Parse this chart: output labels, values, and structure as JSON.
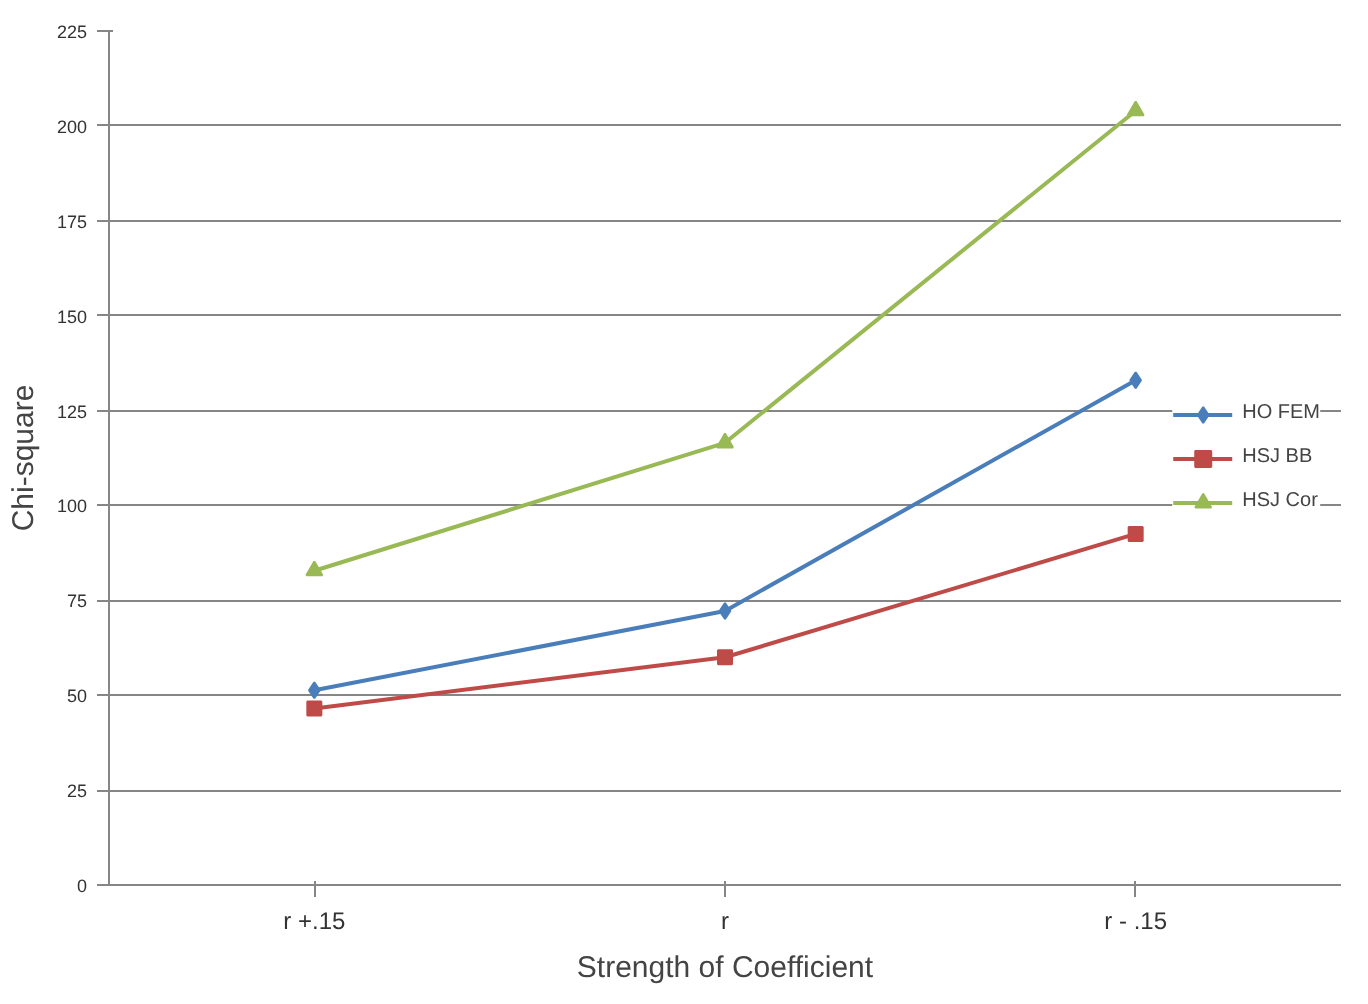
{
  "chart_data": {
    "type": "line",
    "xlabel": "Strength of Coefficient",
    "ylabel": "Chi-square",
    "categories": [
      "r +.15",
      "r",
      "r - .15"
    ],
    "series": [
      {
        "name": "HO FEM",
        "color": "#4a7ebb",
        "marker": "diamond",
        "values": [
          51.3,
          72.2,
          133
        ]
      },
      {
        "name": "HSJ BB",
        "color": "#be4b48",
        "marker": "square",
        "values": [
          46.5,
          60,
          92.5
        ]
      },
      {
        "name": "HSJ Cor",
        "color": "#98b954",
        "marker": "triangle",
        "values": [
          82.8,
          116.5,
          204
        ]
      }
    ],
    "ylim": [
      0,
      225
    ],
    "yticks": [
      0,
      25,
      50,
      75,
      100,
      125,
      150,
      175,
      200,
      225
    ],
    "grid": "y",
    "legend": "right",
    "line_style": "solid"
  }
}
